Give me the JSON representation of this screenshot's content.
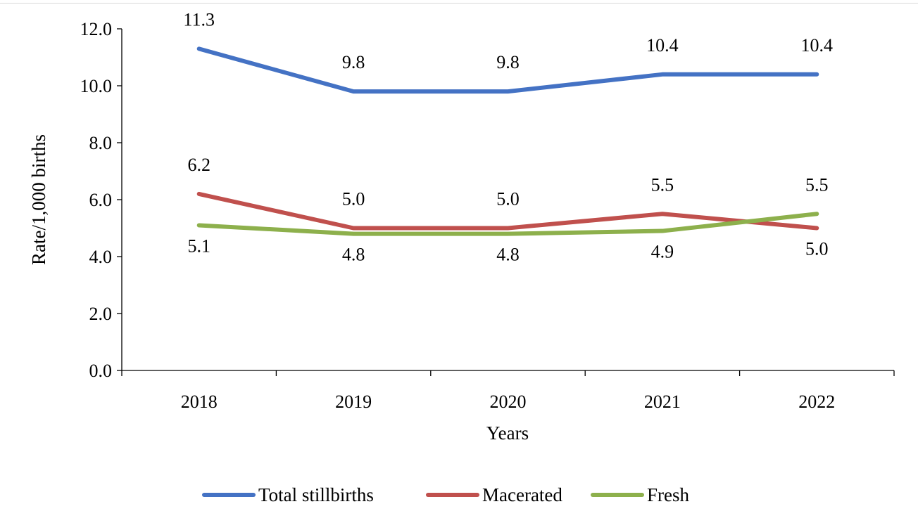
{
  "chart_data": {
    "type": "line",
    "title": "",
    "xlabel": "Years",
    "ylabel": "Rate/1,000 births",
    "categories": [
      "2018",
      "2019",
      "2020",
      "2021",
      "2022"
    ],
    "ylim": [
      0,
      12
    ],
    "yticks": [
      "0.0",
      "2.0",
      "4.0",
      "6.0",
      "8.0",
      "10.0",
      "12.0"
    ],
    "grid": false,
    "legend_position": "bottom",
    "series": [
      {
        "name": "Total stillbirths",
        "color": "#4472C4",
        "values": [
          11.3,
          9.8,
          9.8,
          10.4,
          10.4
        ],
        "labels": [
          "11.3",
          "9.8",
          "9.8",
          "10.4",
          "10.4"
        ]
      },
      {
        "name": "Macerated",
        "color": "#C0504D",
        "values": [
          6.2,
          5.0,
          5.0,
          5.5,
          5.0
        ],
        "labels": [
          "6.2",
          "5.0",
          "5.0",
          "5.5",
          "5.0"
        ]
      },
      {
        "name": "Fresh",
        "color": "#8DB04C",
        "values": [
          5.1,
          4.8,
          4.8,
          4.9,
          5.5
        ],
        "labels": [
          "5.1",
          "4.8",
          "4.8",
          "4.9",
          "5.5"
        ]
      }
    ]
  }
}
